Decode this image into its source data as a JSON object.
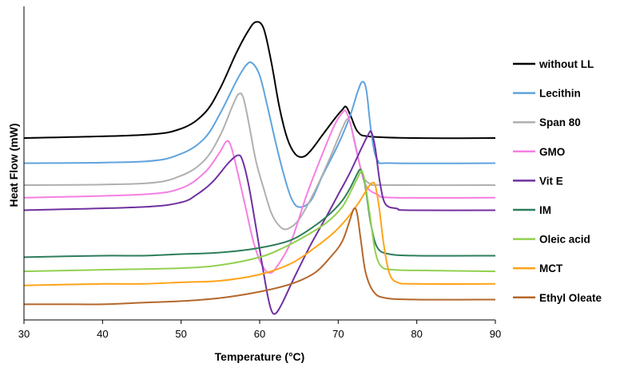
{
  "chart_data": {
    "type": "line",
    "title": "",
    "xlabel": "Temperature (°C)",
    "ylabel": "Heat Flow (mW)",
    "xlim": [
      30,
      90
    ],
    "x_ticks": [
      "30",
      "40",
      "50",
      "60",
      "70",
      "80",
      "90"
    ],
    "ylim": [
      0,
      100
    ],
    "y_ticks_shown": false,
    "grid": false,
    "legend_position": "right",
    "series": [
      {
        "name": "without LL",
        "color": "#000000",
        "points": [
          [
            30,
            58
          ],
          [
            45,
            59
          ],
          [
            50,
            61
          ],
          [
            53,
            66
          ],
          [
            55,
            74
          ],
          [
            57,
            85
          ],
          [
            58.5,
            92
          ],
          [
            59.5,
            95
          ],
          [
            60.5,
            93
          ],
          [
            61.5,
            82
          ],
          [
            62.5,
            68
          ],
          [
            63.5,
            58
          ],
          [
            64.5,
            53
          ],
          [
            65.5,
            52
          ],
          [
            66.5,
            54
          ],
          [
            68,
            59
          ],
          [
            69.5,
            64
          ],
          [
            70.5,
            67
          ],
          [
            71,
            68
          ],
          [
            71.6,
            65
          ],
          [
            72.5,
            60
          ],
          [
            74,
            58.5
          ],
          [
            80,
            58
          ],
          [
            90,
            58
          ]
        ]
      },
      {
        "name": "Lecithin",
        "color": "#5FA3DE",
        "points": [
          [
            30,
            50
          ],
          [
            45,
            50.5
          ],
          [
            50,
            53
          ],
          [
            53,
            58
          ],
          [
            55,
            66
          ],
          [
            57,
            76
          ],
          [
            58.2,
            81
          ],
          [
            59,
            82
          ],
          [
            60,
            78
          ],
          [
            61,
            68
          ],
          [
            62,
            57
          ],
          [
            63,
            47
          ],
          [
            64,
            39
          ],
          [
            65,
            36
          ],
          [
            66.5,
            38
          ],
          [
            68,
            46
          ],
          [
            70,
            56
          ],
          [
            71.5,
            65
          ],
          [
            72.5,
            73
          ],
          [
            73.1,
            76
          ],
          [
            73.6,
            73
          ],
          [
            74.2,
            60
          ],
          [
            75,
            51
          ],
          [
            77,
            50
          ],
          [
            90,
            50
          ]
        ]
      },
      {
        "name": "Span 80",
        "color": "#B0B0B0",
        "points": [
          [
            30,
            43
          ],
          [
            45,
            43.5
          ],
          [
            50,
            46
          ],
          [
            53,
            51
          ],
          [
            55,
            59
          ],
          [
            56.5,
            68
          ],
          [
            57.3,
            72
          ],
          [
            57.9,
            71
          ],
          [
            58.6,
            63
          ],
          [
            59.5,
            51
          ],
          [
            60.5,
            42
          ],
          [
            61.5,
            34
          ],
          [
            62.5,
            30
          ],
          [
            63.5,
            29
          ],
          [
            65,
            32
          ],
          [
            67,
            41
          ],
          [
            69,
            52
          ],
          [
            70.5,
            61
          ],
          [
            71.3,
            64
          ],
          [
            72,
            58
          ],
          [
            73,
            47
          ],
          [
            74,
            43.5
          ],
          [
            76,
            43
          ],
          [
            90,
            43
          ]
        ]
      },
      {
        "name": "GMO",
        "color": "#F57FE2",
        "points": [
          [
            30,
            39
          ],
          [
            45,
            40
          ],
          [
            50,
            42
          ],
          [
            53,
            47
          ],
          [
            54.8,
            53
          ],
          [
            55.8,
            57
          ],
          [
            56.4,
            55
          ],
          [
            57.2,
            47
          ],
          [
            58.2,
            36
          ],
          [
            59.2,
            25
          ],
          [
            60.2,
            18
          ],
          [
            61.2,
            15
          ],
          [
            62.2,
            17
          ],
          [
            64,
            25
          ],
          [
            66,
            40
          ],
          [
            68,
            53
          ],
          [
            69.5,
            62
          ],
          [
            70.5,
            66
          ],
          [
            71,
            66.5
          ],
          [
            71.6,
            62
          ],
          [
            72.5,
            52
          ],
          [
            73.5,
            43
          ],
          [
            75,
            40
          ],
          [
            77,
            39
          ],
          [
            90,
            39
          ]
        ]
      },
      {
        "name": "Vit E",
        "color": "#7030A0",
        "points": [
          [
            30,
            35
          ],
          [
            45,
            36
          ],
          [
            50,
            37.5
          ],
          [
            52,
            40
          ],
          [
            54,
            44
          ],
          [
            56,
            50
          ],
          [
            57.2,
            52.5
          ],
          [
            57.8,
            51
          ],
          [
            58.6,
            43
          ],
          [
            59.5,
            30
          ],
          [
            60.3,
            18
          ],
          [
            61,
            8
          ],
          [
            61.5,
            3
          ],
          [
            62,
            2
          ],
          [
            62.8,
            5
          ],
          [
            64.5,
            14
          ],
          [
            66.5,
            24
          ],
          [
            68.5,
            33
          ],
          [
            70,
            40
          ],
          [
            71.5,
            47
          ],
          [
            73,
            55
          ],
          [
            73.8,
            59
          ],
          [
            74.2,
            60
          ],
          [
            74.7,
            55
          ],
          [
            75.3,
            44
          ],
          [
            76,
            37
          ],
          [
            77.5,
            35.5
          ],
          [
            79,
            35
          ],
          [
            90,
            35
          ]
        ]
      },
      {
        "name": "IM",
        "color": "#2E7D5B",
        "points": [
          [
            30,
            20
          ],
          [
            40,
            20.5
          ],
          [
            45,
            20.5
          ],
          [
            50,
            21
          ],
          [
            55,
            21.5
          ],
          [
            60,
            23
          ],
          [
            64,
            25.5
          ],
          [
            67,
            30
          ],
          [
            69,
            34
          ],
          [
            70.5,
            38
          ],
          [
            71.5,
            42
          ],
          [
            72.3,
            46
          ],
          [
            72.8,
            48
          ],
          [
            73.2,
            46
          ],
          [
            73.6,
            40
          ],
          [
            74.2,
            30
          ],
          [
            75,
            23
          ],
          [
            76.5,
            21
          ],
          [
            80,
            20.5
          ],
          [
            90,
            20.5
          ]
        ]
      },
      {
        "name": "Oleic acid",
        "color": "#92D050",
        "points": [
          [
            30,
            15.5
          ],
          [
            40,
            16
          ],
          [
            50,
            16.5
          ],
          [
            55,
            17.5
          ],
          [
            60,
            20
          ],
          [
            63,
            23
          ],
          [
            66,
            27
          ],
          [
            68.5,
            31
          ],
          [
            70.5,
            36
          ],
          [
            71.8,
            42
          ],
          [
            72.6,
            46
          ],
          [
            73,
            47.5
          ],
          [
            73.4,
            44
          ],
          [
            74,
            34
          ],
          [
            74.7,
            22
          ],
          [
            75.5,
            17
          ],
          [
            77,
            16
          ],
          [
            80,
            15.8
          ],
          [
            90,
            15.5
          ]
        ]
      },
      {
        "name": "MCT",
        "color": "#FFA31A",
        "points": [
          [
            30,
            11
          ],
          [
            40,
            11.5
          ],
          [
            45,
            11.5
          ],
          [
            50,
            12
          ],
          [
            55,
            12.5
          ],
          [
            60,
            14.5
          ],
          [
            64,
            18
          ],
          [
            67,
            23
          ],
          [
            69.5,
            28
          ],
          [
            71,
            32
          ],
          [
            72.5,
            37
          ],
          [
            73.5,
            41
          ],
          [
            74.2,
            43.5
          ],
          [
            74.7,
            43
          ],
          [
            75.2,
            36
          ],
          [
            75.8,
            24
          ],
          [
            76.5,
            15
          ],
          [
            77.5,
            12
          ],
          [
            80,
            11.5
          ],
          [
            90,
            11.5
          ]
        ]
      },
      {
        "name": "Ethyl Oleate",
        "color": "#B5672B",
        "points": [
          [
            30,
            5
          ],
          [
            35,
            5
          ],
          [
            40,
            5
          ],
          [
            45,
            5.5
          ],
          [
            50,
            6
          ],
          [
            55,
            7
          ],
          [
            60,
            9
          ],
          [
            64,
            11.5
          ],
          [
            67,
            15
          ],
          [
            69,
            20
          ],
          [
            70.5,
            25
          ],
          [
            71.5,
            32
          ],
          [
            72,
            35.5
          ],
          [
            72.4,
            34
          ],
          [
            72.9,
            25
          ],
          [
            73.5,
            15
          ],
          [
            74.5,
            9
          ],
          [
            76,
            7
          ],
          [
            80,
            6.5
          ],
          [
            90,
            6.5
          ]
        ]
      }
    ]
  }
}
